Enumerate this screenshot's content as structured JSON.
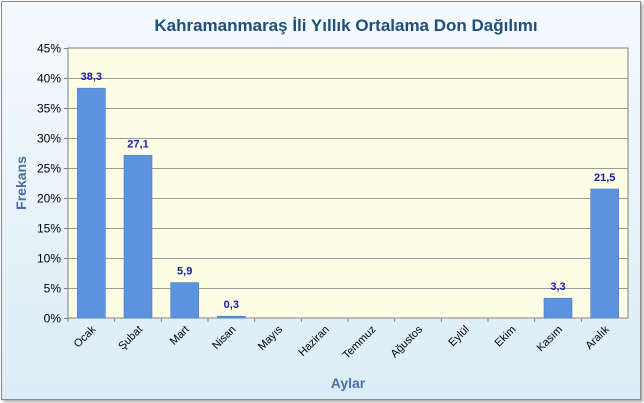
{
  "chart_data": {
    "type": "bar",
    "title": "Kahramanmaraş İli Yıllık Ortalama Don Dağılımı",
    "xlabel": "Aylar",
    "ylabel": "Frekans",
    "categories": [
      "Ocak",
      "Şubat",
      "Mart",
      "Nisan",
      "Mayıs",
      "Haziran",
      "Temmuz",
      "Ağustos",
      "Eylül",
      "Ekim",
      "Kasım",
      "Aralık"
    ],
    "values": [
      38.3,
      27.1,
      5.9,
      0.3,
      0,
      0,
      0,
      0,
      0,
      0,
      3.3,
      21.5
    ],
    "data_labels": [
      "38,3",
      "27,1",
      "5,9",
      "0,3",
      "",
      "",
      "",
      "",
      "",
      "",
      "3,3",
      "21,5"
    ],
    "ylim": [
      0,
      45
    ],
    "yticks": [
      "0%",
      "5%",
      "10%",
      "15%",
      "20%",
      "25%",
      "30%",
      "35%",
      "40%",
      "45%"
    ],
    "grid": true,
    "legend": "none",
    "colors": {
      "bar": "#5b93e0",
      "plot_background": "#fcfde4",
      "gridline": "#9a9a9a",
      "data_label": "#1a1aa0",
      "title": "#1f4e79",
      "axis_title": "#4a6fa5"
    }
  }
}
